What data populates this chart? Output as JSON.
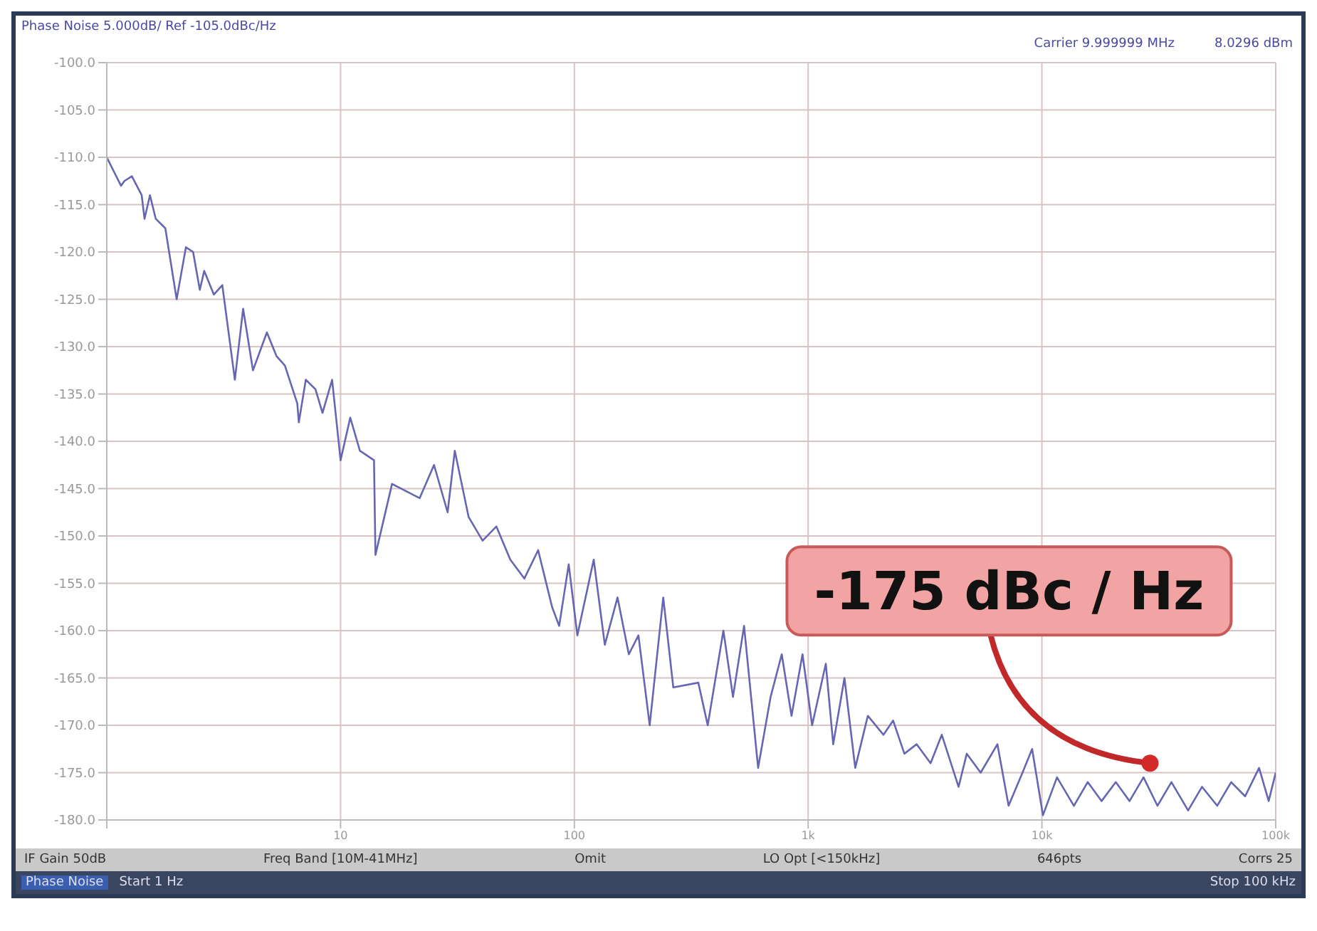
{
  "chart_data": {
    "type": "line",
    "title": "Phase Noise 5.000dB/ Ref -105.0dBc/Hz",
    "log": "x",
    "grid": true,
    "legend": false,
    "marker": "none",
    "line_style": "solid",
    "xlim": [
      1,
      100000
    ],
    "xticks": [
      {
        "value": 1,
        "label": null
      },
      {
        "value": 10,
        "label": "10"
      },
      {
        "value": 100,
        "label": "100"
      },
      {
        "value": 1000,
        "label": "1k"
      },
      {
        "value": 10000,
        "label": "10k"
      },
      {
        "value": 100000,
        "label": "100k"
      }
    ],
    "ylim": [
      -180,
      -100
    ],
    "yticks": [
      {
        "value": -100,
        "label": "-100.0"
      },
      {
        "value": -105,
        "label": "-105.0"
      },
      {
        "value": -110,
        "label": "-110.0"
      },
      {
        "value": -115,
        "label": "-115.0"
      },
      {
        "value": -120,
        "label": "-120.0"
      },
      {
        "value": -125,
        "label": "-125.0"
      },
      {
        "value": -130,
        "label": "-130.0"
      },
      {
        "value": -135,
        "label": "-135.0"
      },
      {
        "value": -140,
        "label": "-140.0"
      },
      {
        "value": -145,
        "label": "-145.0"
      },
      {
        "value": -150,
        "label": "-150.0"
      },
      {
        "value": -155,
        "label": "-155.0"
      },
      {
        "value": -160,
        "label": "-160.0"
      },
      {
        "value": -165,
        "label": "-165.0"
      },
      {
        "value": -170,
        "label": "-170.0"
      },
      {
        "value": -175,
        "label": "-175.0"
      },
      {
        "value": -180,
        "label": "-180.0"
      }
    ],
    "series": [
      {
        "color": "#6666b3",
        "x": [
          1,
          1.15,
          1.19,
          1.28,
          1.41,
          1.45,
          1.53,
          1.62,
          1.78,
          1.99,
          2.18,
          2.34,
          2.5,
          2.61,
          2.87,
          3.12,
          3.53,
          3.83,
          4.22,
          4.84,
          5.32,
          5.78,
          6.53,
          6.63,
          7.1,
          7.81,
          8.37,
          9.2,
          10,
          11,
          12.1,
          13.9,
          14.1,
          16.6,
          21.8,
          25.1,
          28.7,
          30.8,
          35.3,
          40.5,
          46.4,
          53.2,
          61.1,
          70,
          80.3,
          86.1,
          94.6,
          103,
          121,
          135,
          153,
          171,
          188,
          210,
          240,
          265,
          339,
          372,
          434,
          477,
          532,
          611,
          691,
          771,
          849,
          946,
          1040,
          1190,
          1280,
          1430,
          1590,
          1800,
          2100,
          2310,
          2580,
          2910,
          3340,
          3730,
          4400,
          4770,
          5470,
          6450,
          7200,
          8260,
          9080,
          10100,
          11600,
          13700,
          15700,
          18000,
          20700,
          23700,
          27200,
          31200,
          35800,
          42200,
          48400,
          56200,
          64500,
          74000,
          84900,
          93300,
          100000
        ],
        "values": [
          -110.0,
          -113.0,
          -112.5,
          -112.0,
          -114.0,
          -116.5,
          -114.0,
          -116.5,
          -117.5,
          -125.0,
          -119.5,
          -120.0,
          -124.0,
          -122.0,
          -124.5,
          -123.5,
          -133.5,
          -126.0,
          -132.5,
          -128.5,
          -131.0,
          -132.0,
          -136.0,
          -138.0,
          -133.5,
          -134.5,
          -137.0,
          -133.5,
          -142.0,
          -137.5,
          -141.0,
          -142.0,
          -152.0,
          -144.5,
          -146.0,
          -142.5,
          -147.5,
          -141.0,
          -148.0,
          -150.5,
          -149.0,
          -152.5,
          -154.5,
          -151.5,
          -157.5,
          -159.5,
          -153.0,
          -160.5,
          -152.5,
          -161.5,
          -156.5,
          -162.5,
          -160.5,
          -170.0,
          -156.5,
          -166.0,
          -165.5,
          -170.0,
          -160.0,
          -167.0,
          -159.5,
          -174.5,
          -167.0,
          -162.5,
          -169.0,
          -162.5,
          -170.0,
          -163.5,
          -172.0,
          -165.0,
          -174.5,
          -169.0,
          -171.0,
          -169.5,
          -173.0,
          -172.0,
          -174.0,
          -171.0,
          -176.5,
          -173.0,
          -175.0,
          -172.0,
          -178.5,
          -175.0,
          -172.5,
          -179.5,
          -175.5,
          -178.5,
          -176.0,
          -178.0,
          -176.0,
          -178.0,
          -175.5,
          -178.5,
          -176.0,
          -179.0,
          -176.5,
          -178.5,
          -176.0,
          -177.5,
          -174.5,
          -178.0,
          -175.0
        ]
      }
    ],
    "annotations": [
      "Carrier 9.999999 MHz",
      "8.0296 dBm",
      "IF Gain 50dB",
      "Freq Band [10M-41MHz]",
      "Omit",
      "LO Opt [<150kHz]",
      "646pts",
      "Corrs 25",
      "Phase Noise",
      "Start 1 Hz",
      "Stop 100 kHz",
      {
        "text": "-175 dBc / Hz",
        "x": 29000,
        "y": -174
      }
    ]
  }
}
